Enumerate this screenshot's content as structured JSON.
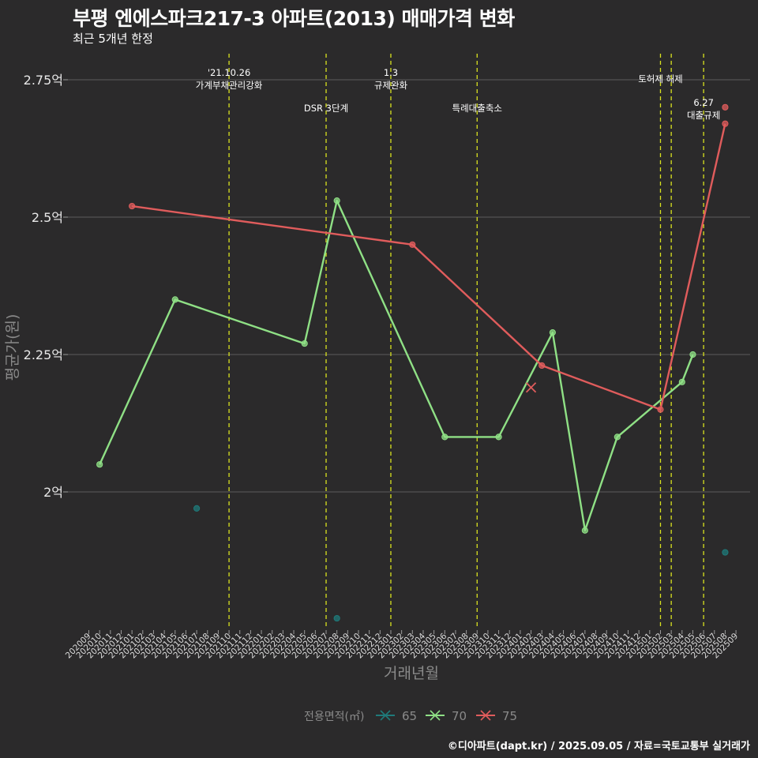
{
  "chart_data": {
    "type": "line",
    "title": "부평 엔에스파크217-3 아파트(2013) 매매가격 변화",
    "subtitle": "최근 5개년 한정",
    "xlabel": "거래년월",
    "ylabel": "평균가(원)",
    "caption": "©디아파트(dapt.kr) / 2025.09.05 / 자료=국토교통부 실거래가",
    "legend_title": "전용면적(㎡)",
    "y_ticks": [
      {
        "value": 2.0,
        "label": "2억"
      },
      {
        "value": 2.25,
        "label": "2.25억"
      },
      {
        "value": 2.5,
        "label": "2.5억"
      },
      {
        "value": 2.75,
        "label": "2.75억"
      }
    ],
    "ylim": [
      1.75,
      2.78
    ],
    "x_months": [
      "202009",
      "202010",
      "202011",
      "202012",
      "202101",
      "202102",
      "202103",
      "202104",
      "202105",
      "202106",
      "202107",
      "202108",
      "202109",
      "202110",
      "202111",
      "202112",
      "202201",
      "202202",
      "202203",
      "202204",
      "202205",
      "202206",
      "202207",
      "202208",
      "202209",
      "202210",
      "202211",
      "202212",
      "202301",
      "202302",
      "202303",
      "202304",
      "202305",
      "202306",
      "202307",
      "202308",
      "202309",
      "202310",
      "202311",
      "202312",
      "202401",
      "202402",
      "202403",
      "202404",
      "202405",
      "202406",
      "202407",
      "202408",
      "202409",
      "202410",
      "202411",
      "202412",
      "202501",
      "202502",
      "202503",
      "202504",
      "202505",
      "202506",
      "202507",
      "202508",
      "202509"
    ],
    "series": [
      {
        "name": "65",
        "color": "#1f7a7a",
        "line": false,
        "points": [
          {
            "x": "202107",
            "y": 1.97
          },
          {
            "x": "202208",
            "y": 1.77
          },
          {
            "x": "202508",
            "y": 1.89
          }
        ]
      },
      {
        "name": "70",
        "color": "#8fe085",
        "line": true,
        "points": [
          {
            "x": "202010",
            "y": 2.05
          },
          {
            "x": "202105",
            "y": 2.35
          },
          {
            "x": "202205",
            "y": 2.27
          },
          {
            "x": "202208",
            "y": 2.53
          },
          {
            "x": "202306",
            "y": 2.1
          },
          {
            "x": "202311",
            "y": 2.1
          },
          {
            "x": "202404",
            "y": 2.29
          },
          {
            "x": "202407",
            "y": 1.93
          },
          {
            "x": "202410",
            "y": 2.1
          },
          {
            "x": "202504",
            "y": 2.2
          },
          {
            "x": "202505",
            "y": 2.25
          }
        ]
      },
      {
        "name": "75",
        "color": "#e05c5c",
        "line": true,
        "points": [
          {
            "x": "202101",
            "y": 2.52
          },
          {
            "x": "202303",
            "y": 2.45
          },
          {
            "x": "202403",
            "y": 2.23
          },
          {
            "x": "202502",
            "y": 2.15
          },
          {
            "x": "202508",
            "y": 2.67
          }
        ],
        "extra_points": [
          {
            "x": "202508",
            "y": 2.7
          }
        ],
        "cross_marks": [
          {
            "x": "202402",
            "y": 2.19
          }
        ]
      }
    ],
    "events": [
      {
        "x": "202110",
        "label": "'21.10.26\n가계부채관리강화",
        "row": 1
      },
      {
        "x": "202207",
        "label": "DSR 3단계",
        "row": 2
      },
      {
        "x": "202301",
        "label": "1.3\n규제완화",
        "row": 1
      },
      {
        "x": "202309",
        "label": "특례대출축소",
        "row": 2
      },
      {
        "x": "202502",
        "label": "토허제 해제",
        "row": 1
      },
      {
        "x": "202503",
        "label": "",
        "row": 1
      },
      {
        "x": "202506",
        "label": "6.27\n대출규제",
        "row": 2
      }
    ]
  }
}
